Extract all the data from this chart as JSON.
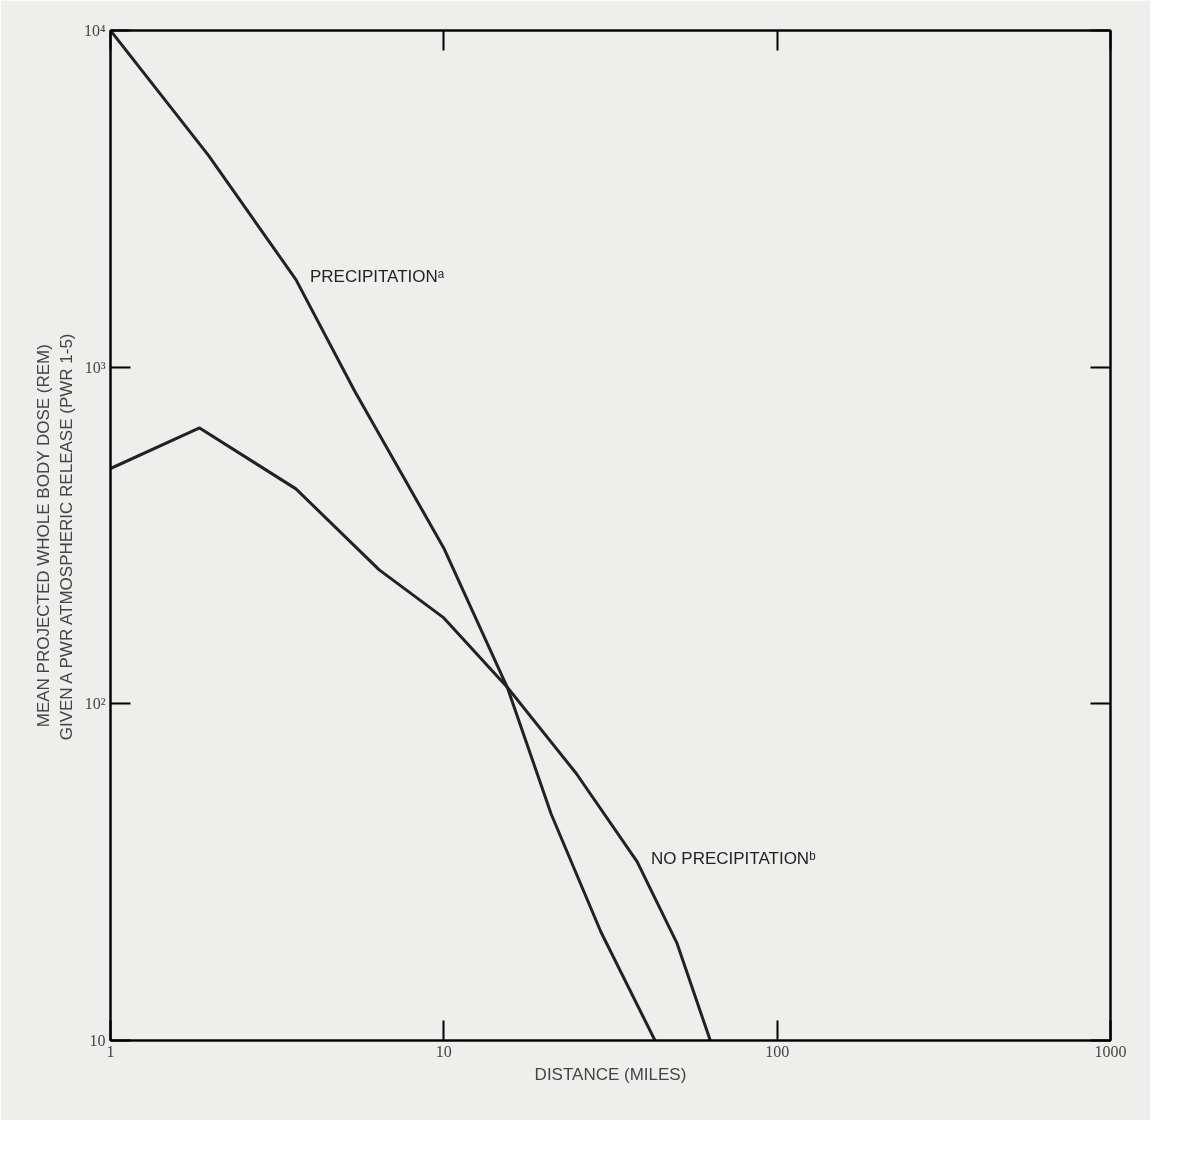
{
  "chart_data": {
    "type": "line",
    "xlabel": "DISTANCE (MILES)",
    "ylabel": "MEAN PROJECTED WHOLE BODY DOSE (REM)\nGIVEN A PWR ATMOSPHERIC RELEASE (PWR 1-5)",
    "log": "xy",
    "xlim": [
      1,
      1000
    ],
    "ylim": [
      10,
      10000
    ],
    "xticks": [
      1,
      10,
      100,
      1000
    ],
    "yticks": [
      10,
      {
        "value": 100,
        "label": "10²"
      },
      {
        "value": 1000,
        "label": "10³"
      },
      {
        "value": 10000,
        "label": "10⁴"
      }
    ],
    "grid": false,
    "marker": "none",
    "line_style": "solid",
    "series": [
      {
        "name": "PRECIPITATIONᵃ",
        "color": "#222222",
        "x": [
          1,
          1.97,
          3.6,
          5.4,
          10,
          15.5,
          21,
          29.6,
          43
        ],
        "values": [
          10000,
          4250,
          1820,
          850,
          290,
          112,
          47,
          21,
          10
        ]
      },
      {
        "name": "NO PRECIPITATIONᵇ",
        "color": "#222222",
        "x": [
          1,
          1.85,
          3.6,
          6.4,
          10,
          15.5,
          25,
          38,
          50,
          63
        ],
        "values": [
          500,
          660,
          435,
          250,
          180,
          112,
          62,
          34,
          19.5,
          10
        ]
      }
    ]
  }
}
